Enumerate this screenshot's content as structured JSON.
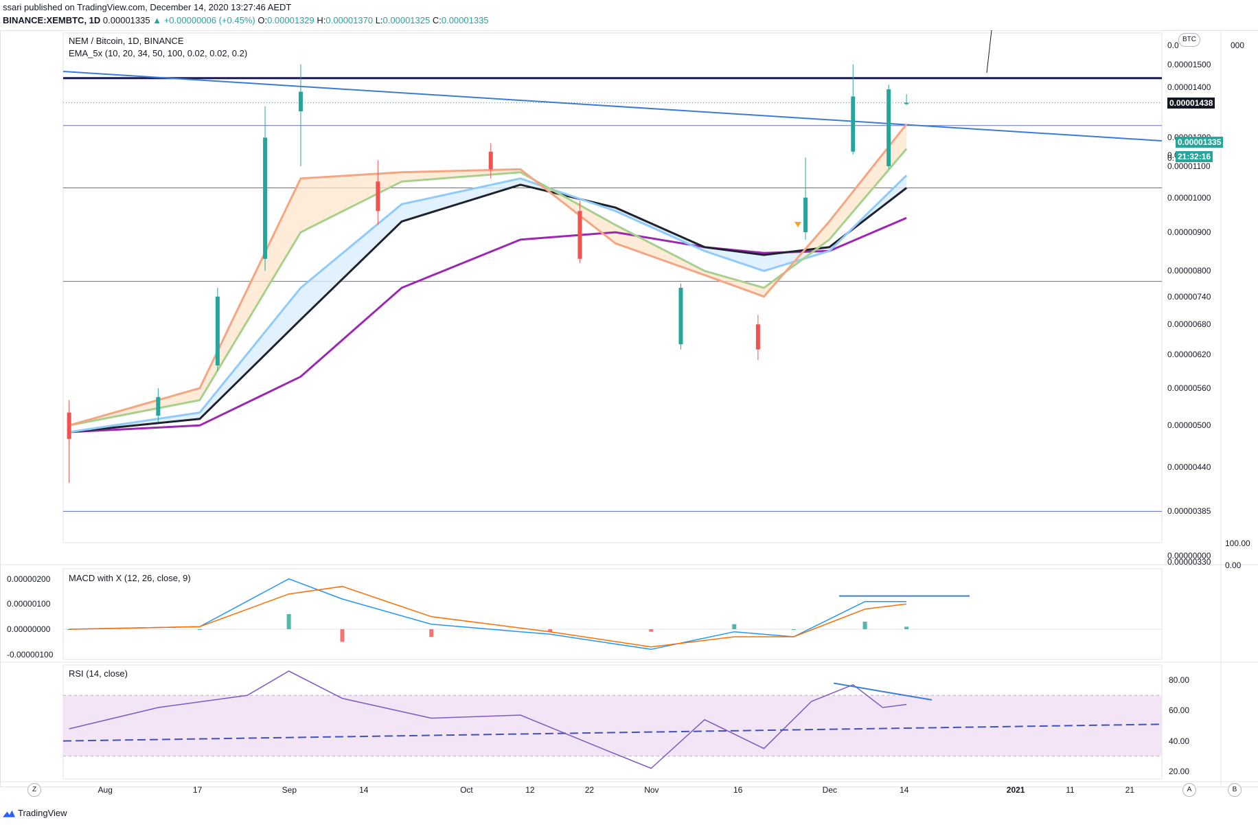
{
  "header": {
    "published": "ssari published on TradingView.com, December 14, 2020 13:27:46 AEDT",
    "symbol": "BINANCE:XEMBTC, 1D",
    "last": "0.00001335",
    "change": "▲ +0.00000006 (+0.45%)",
    "o_label": "O:",
    "o": "0.00001329",
    "h_label": "H:",
    "h": "0.00001370",
    "l_label": "L:",
    "l": "0.00001325",
    "c_label": "C:",
    "c": "0.00001335"
  },
  "main": {
    "title": "NEM / Bitcoin, 1D, BINANCE",
    "indicator": "EMA_5x (10, 20, 34, 50, 100, 0.02, 0.02, 0.2)",
    "currency": "BTC",
    "level_tag": "0.00001438",
    "price_tag": "0.00001335",
    "countdown": "21:32:16",
    "price_axis": [
      "0.00001500",
      "0.00001400",
      "0.00001200",
      "0.00001100",
      "0.00001000",
      "0.00000900",
      "0.00000800",
      "0.00000740",
      "0.00000680",
      "0.00000620",
      "0.00000560",
      "0.00000500",
      "0.00000440",
      "0.00000385",
      "0.00000330",
      "0.00000000"
    ],
    "axis_fragments": [
      "0.0",
      "0.0",
      "000",
      "0.",
      "100.00",
      "0.00"
    ]
  },
  "macd": {
    "title": "MACD with X (12, 26, close, 9)",
    "axis": [
      "0.00000200",
      "0.00000100",
      "0.00000000",
      "-0.00000100"
    ]
  },
  "rsi": {
    "title": "RSI (14, close)",
    "axis": [
      "80.00",
      "60.00",
      "40.00",
      "20.00"
    ]
  },
  "time_axis": [
    "Aug",
    "17",
    "Sep",
    "14",
    "Oct",
    "12",
    "22",
    "Nov",
    "16",
    "Dec",
    "14",
    "2021",
    "11",
    "21"
  ],
  "buttons": {
    "z": "Z",
    "a": "A",
    "b": "B"
  },
  "brand": "TradingView",
  "colors": {
    "up": "#26a69a",
    "down": "#ef5350",
    "ema10": "#f4a582",
    "ema20": "#a8d08d",
    "ema34": "#90caf9",
    "ema50": "#1e222d",
    "ema100": "#9c27b0",
    "trend": "#3a7bd5",
    "level": "#1a1a4e",
    "hline": "#5c6bc0",
    "rsiband": "#f3e5f5"
  },
  "chart_data": [
    {
      "type": "candlestick",
      "title": "NEM / Bitcoin, 1D, BINANCE",
      "x_range": [
        "2020-07-25",
        "2021-01-26"
      ],
      "y_scale": "log",
      "y_range": [
        3.5e-06,
        1.65e-05
      ],
      "horizontal_levels": [
        1.438e-05,
        1.245e-05,
        1.03e-05,
        7.75e-06,
        3.85e-06
      ],
      "last_price": 1.335e-05,
      "ohlc_samples": [
        {
          "date": "2020-07-26",
          "o": 5.2e-06,
          "h": 5.4e-06,
          "l": 4.2e-06,
          "c": 4.8e-06
        },
        {
          "date": "2020-08-10",
          "o": 5.15e-06,
          "h": 5.6e-06,
          "l": 5.05e-06,
          "c": 5.45e-06
        },
        {
          "date": "2020-08-20",
          "o": 6e-06,
          "h": 7.6e-06,
          "l": 5.9e-06,
          "c": 7.4e-06
        },
        {
          "date": "2020-08-28",
          "o": 8.3e-06,
          "h": 1.32e-05,
          "l": 8e-06,
          "c": 1.2e-05
        },
        {
          "date": "2020-09-03",
          "o": 1.3e-05,
          "h": 1.5e-05,
          "l": 1.1e-05,
          "c": 1.38e-05
        },
        {
          "date": "2020-09-16",
          "o": 1.05e-05,
          "h": 1.12e-05,
          "l": 9.2e-06,
          "c": 9.6e-06
        },
        {
          "date": "2020-10-05",
          "o": 1.15e-05,
          "h": 1.18e-05,
          "l": 1.06e-05,
          "c": 1.09e-05
        },
        {
          "date": "2020-10-20",
          "o": 9.6e-06,
          "h": 9.9e-06,
          "l": 8.2e-06,
          "c": 8.3e-06
        },
        {
          "date": "2020-11-06",
          "o": 6.4e-06,
          "h": 7.7e-06,
          "l": 6.3e-06,
          "c": 7.6e-06
        },
        {
          "date": "2020-11-19",
          "o": 6.8e-06,
          "h": 7e-06,
          "l": 6.1e-06,
          "c": 6.3e-06
        },
        {
          "date": "2020-11-27",
          "o": 9e-06,
          "h": 1.13e-05,
          "l": 8.8e-06,
          "c": 1e-05
        },
        {
          "date": "2020-12-05",
          "o": 1.15e-05,
          "h": 1.5e-05,
          "l": 1.14e-05,
          "c": 1.36e-05
        },
        {
          "date": "2020-12-11",
          "o": 1.1e-05,
          "h": 1.41e-05,
          "l": 1.09e-05,
          "c": 1.39e-05
        },
        {
          "date": "2020-12-14",
          "o": 1.329e-05,
          "h": 1.37e-05,
          "l": 1.325e-05,
          "c": 1.335e-05
        }
      ],
      "ema_samples": {
        "dates": [
          "2020-07-26",
          "2020-08-17",
          "2020-09-03",
          "2020-09-20",
          "2020-10-10",
          "2020-10-26",
          "2020-11-10",
          "2020-11-20",
          "2020-12-01",
          "2020-12-14"
        ],
        "ema10": [
          5e-06,
          5.6e-06,
          1.06e-05,
          1.08e-05,
          1.09e-05,
          8.7e-06,
          7.9e-06,
          7.4e-06,
          9.3e-06,
          1.25e-05
        ],
        "ema20": [
          5e-06,
          5.4e-06,
          9e-06,
          1.05e-05,
          1.08e-05,
          9.2e-06,
          8e-06,
          7.6e-06,
          8.8e-06,
          1.16e-05
        ],
        "ema34": [
          4.9e-06,
          5.2e-06,
          7.6e-06,
          9.8e-06,
          1.06e-05,
          9.6e-06,
          8.5e-06,
          8e-06,
          8.5e-06,
          1.07e-05
        ],
        "ema50": [
          4.9e-06,
          5.1e-06,
          6.9e-06,
          9.3e-06,
          1.04e-05,
          9.7e-06,
          8.6e-06,
          8.4e-06,
          8.6e-06,
          1.03e-05
        ],
        "ema100": [
          4.9e-06,
          5e-06,
          5.8e-06,
          7.6e-06,
          8.8e-06,
          9e-06,
          8.6e-06,
          8.45e-06,
          8.5e-06,
          9.4e-06
        ]
      }
    },
    {
      "type": "bar",
      "title": "MACD with X (12, 26, close, 9)",
      "y_range": [
        -1.2e-06,
        2.4e-06
      ],
      "dates": [
        "2020-07-26",
        "2020-08-17",
        "2020-09-01",
        "2020-09-10",
        "2020-09-25",
        "2020-10-15",
        "2020-11-01",
        "2020-11-15",
        "2020-11-25",
        "2020-12-07",
        "2020-12-14"
      ],
      "macd": [
        0.0,
        1e-07,
        2e-06,
        1.2e-06,
        2e-07,
        -2e-07,
        -8e-07,
        -1e-07,
        -3e-07,
        1.1e-06,
        1.1e-06
      ],
      "signal": [
        0.0,
        1e-07,
        1.4e-06,
        1.7e-06,
        5e-07,
        -1e-07,
        -7e-07,
        -3e-07,
        -3e-07,
        8e-07,
        1e-06
      ]
    },
    {
      "type": "line",
      "title": "RSI (14, close)",
      "y_range": [
        15,
        90
      ],
      "band": [
        30,
        70
      ],
      "dates": [
        "2020-07-26",
        "2020-08-10",
        "2020-08-25",
        "2020-09-01",
        "2020-09-10",
        "2020-09-25",
        "2020-10-10",
        "2020-10-25",
        "2020-11-01",
        "2020-11-10",
        "2020-11-20",
        "2020-11-28",
        "2020-12-05",
        "2020-12-10",
        "2020-12-14"
      ],
      "values": [
        48,
        62,
        70,
        86,
        68,
        55,
        57,
        33,
        22,
        54,
        35,
        66,
        77,
        62,
        64
      ]
    }
  ]
}
